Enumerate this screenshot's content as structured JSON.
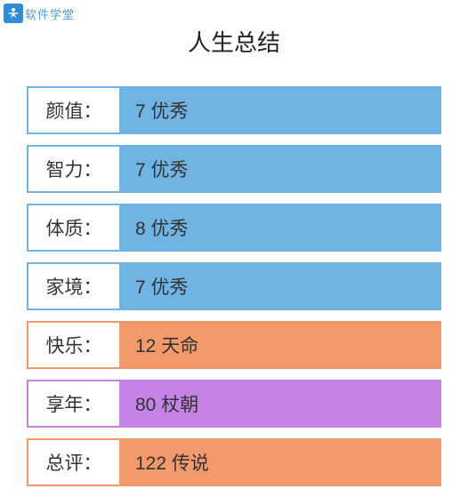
{
  "watermark": {
    "text": "软件学堂"
  },
  "title": "人生总结",
  "colors": {
    "blue": {
      "border": "#6fb4e3",
      "fill": "#6fb4e3"
    },
    "orange": {
      "border": "#f29a6c",
      "fill": "#f29a6c"
    },
    "purple": {
      "border": "#c583e8",
      "fill": "#c583e8"
    }
  },
  "rows": [
    {
      "label": "颜值：",
      "value": "7 优秀",
      "color": "blue"
    },
    {
      "label": "智力：",
      "value": "7 优秀",
      "color": "blue"
    },
    {
      "label": "体质：",
      "value": "8 优秀",
      "color": "blue"
    },
    {
      "label": "家境：",
      "value": "7 优秀",
      "color": "blue"
    },
    {
      "label": "快乐：",
      "value": "12 天命",
      "color": "orange"
    },
    {
      "label": "享年：",
      "value": "80 杖朝",
      "color": "purple"
    },
    {
      "label": "总评：",
      "value": "122 传说",
      "color": "orange"
    }
  ]
}
